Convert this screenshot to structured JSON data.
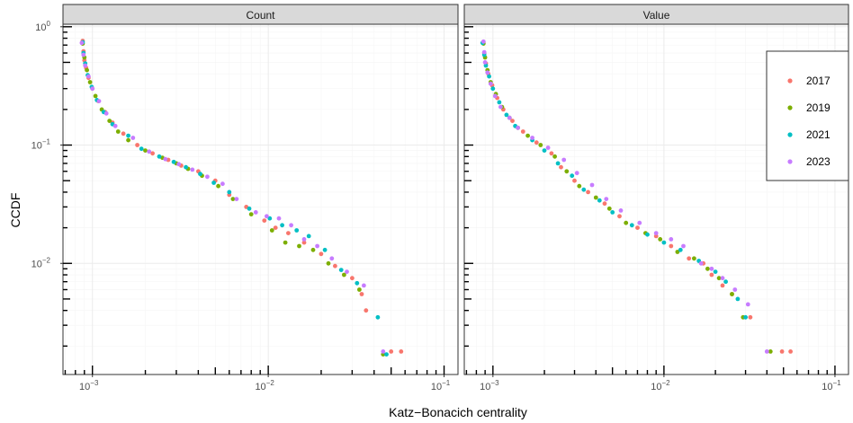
{
  "colors": {
    "2017": "#F8766D",
    "2019": "#7CAE00",
    "2021": "#00BFC4",
    "2023": "#C77CFF",
    "strip_bg": "#d9d9d9",
    "panel_border": "#333333",
    "grid_major": "#ebebeb",
    "grid_minor": "#f5f5f5"
  },
  "chart_data": {
    "type": "scatter",
    "x_scale": "log10",
    "y_scale": "log10",
    "xlabel": "Katz−Bonacich centrality",
    "ylabel": "CCDF",
    "xlim": [
      0.00068,
      0.12
    ],
    "ylim": [
      0.00115,
      1.05
    ],
    "grid": true,
    "legend_position": "top-right",
    "x_ticks": [
      {
        "value": 0.001,
        "base": "10",
        "exp": "−3"
      },
      {
        "value": 0.01,
        "base": "10",
        "exp": "−2"
      },
      {
        "value": 0.1,
        "base": "10",
        "exp": "−1"
      }
    ],
    "y_ticks": [
      {
        "value": 1,
        "base": "10",
        "exp": "0"
      },
      {
        "value": 0.1,
        "base": "10",
        "exp": "−1"
      },
      {
        "value": 0.01,
        "base": "10",
        "exp": "−2"
      }
    ],
    "legend": [
      "2017",
      "2019",
      "2021",
      "2023"
    ],
    "panels": [
      {
        "title": "Count",
        "series": [
          {
            "name": "2017",
            "points": [
              [
                0.00088,
                0.76
              ],
              [
                0.00089,
                0.62
              ],
              [
                0.0009,
                0.52
              ],
              [
                0.00092,
                0.45
              ],
              [
                0.00095,
                0.37
              ],
              [
                0.001,
                0.3
              ],
              [
                0.00108,
                0.235
              ],
              [
                0.00118,
                0.19
              ],
              [
                0.0013,
                0.155
              ],
              [
                0.0015,
                0.125
              ],
              [
                0.0018,
                0.1
              ],
              [
                0.0022,
                0.085
              ],
              [
                0.0027,
                0.075
              ],
              [
                0.0032,
                0.067
              ],
              [
                0.004,
                0.06
              ],
              [
                0.005,
                0.05
              ],
              [
                0.006,
                0.038
              ],
              [
                0.0075,
                0.03
              ],
              [
                0.0095,
                0.023
              ],
              [
                0.011,
                0.02
              ],
              [
                0.013,
                0.018
              ],
              [
                0.016,
                0.015
              ],
              [
                0.02,
                0.012
              ],
              [
                0.024,
                0.0095
              ],
              [
                0.03,
                0.0075
              ],
              [
                0.034,
                0.0055
              ],
              [
                0.036,
                0.004
              ],
              [
                0.05,
                0.0018
              ],
              [
                0.057,
                0.0018
              ]
            ]
          },
          {
            "name": "2019",
            "points": [
              [
                0.00088,
                0.72
              ],
              [
                0.0009,
                0.55
              ],
              [
                0.00093,
                0.43
              ],
              [
                0.00097,
                0.34
              ],
              [
                0.00104,
                0.26
              ],
              [
                0.00113,
                0.2
              ],
              [
                0.00125,
                0.16
              ],
              [
                0.0014,
                0.13
              ],
              [
                0.0016,
                0.11
              ],
              [
                0.002,
                0.09
              ],
              [
                0.0025,
                0.078
              ],
              [
                0.003,
                0.07
              ],
              [
                0.0035,
                0.063
              ],
              [
                0.0042,
                0.055
              ],
              [
                0.0052,
                0.045
              ],
              [
                0.0063,
                0.035
              ],
              [
                0.008,
                0.026
              ],
              [
                0.0105,
                0.019
              ],
              [
                0.0125,
                0.015
              ],
              [
                0.015,
                0.014
              ],
              [
                0.018,
                0.013
              ],
              [
                0.022,
                0.01
              ],
              [
                0.027,
                0.008
              ],
              [
                0.033,
                0.006
              ],
              [
                0.045,
                0.0017
              ]
            ]
          },
          {
            "name": "2021",
            "points": [
              [
                0.00088,
                0.74
              ],
              [
                0.00089,
                0.6
              ],
              [
                0.00091,
                0.49
              ],
              [
                0.00094,
                0.39
              ],
              [
                0.00099,
                0.31
              ],
              [
                0.00106,
                0.24
              ],
              [
                0.00116,
                0.19
              ],
              [
                0.0013,
                0.15
              ],
              [
                0.0016,
                0.12
              ],
              [
                0.0019,
                0.093
              ],
              [
                0.0024,
                0.08
              ],
              [
                0.0029,
                0.072
              ],
              [
                0.0034,
                0.065
              ],
              [
                0.0041,
                0.057
              ],
              [
                0.0049,
                0.048
              ],
              [
                0.006,
                0.04
              ],
              [
                0.0078,
                0.029
              ],
              [
                0.0102,
                0.024
              ],
              [
                0.012,
                0.021
              ],
              [
                0.0145,
                0.019
              ],
              [
                0.017,
                0.017
              ],
              [
                0.021,
                0.013
              ],
              [
                0.026,
                0.0088
              ],
              [
                0.032,
                0.0068
              ],
              [
                0.042,
                0.0035
              ],
              [
                0.047,
                0.0017
              ]
            ]
          },
          {
            "name": "2023",
            "points": [
              [
                0.00087,
                0.73
              ],
              [
                0.00089,
                0.58
              ],
              [
                0.00091,
                0.47
              ],
              [
                0.00095,
                0.38
              ],
              [
                0.001,
                0.3
              ],
              [
                0.00109,
                0.235
              ],
              [
                0.0012,
                0.185
              ],
              [
                0.00135,
                0.145
              ],
              [
                0.0017,
                0.115
              ],
              [
                0.0021,
                0.088
              ],
              [
                0.0026,
                0.076
              ],
              [
                0.0031,
                0.069
              ],
              [
                0.0037,
                0.062
              ],
              [
                0.0045,
                0.054
              ],
              [
                0.0055,
                0.047
              ],
              [
                0.0066,
                0.035
              ],
              [
                0.0085,
                0.027
              ],
              [
                0.0098,
                0.025
              ],
              [
                0.0115,
                0.024
              ],
              [
                0.0135,
                0.021
              ],
              [
                0.016,
                0.016
              ],
              [
                0.019,
                0.014
              ],
              [
                0.023,
                0.011
              ],
              [
                0.028,
                0.0085
              ],
              [
                0.035,
                0.0065
              ],
              [
                0.045,
                0.0018
              ]
            ]
          }
        ]
      },
      {
        "title": "Value",
        "series": [
          {
            "name": "2017",
            "points": [
              [
                0.00088,
                0.74
              ],
              [
                0.00089,
                0.6
              ],
              [
                0.00091,
                0.49
              ],
              [
                0.00094,
                0.4
              ],
              [
                0.00099,
                0.32
              ],
              [
                0.00106,
                0.25
              ],
              [
                0.00115,
                0.2
              ],
              [
                0.0013,
                0.16
              ],
              [
                0.0015,
                0.13
              ],
              [
                0.0018,
                0.105
              ],
              [
                0.0022,
                0.085
              ],
              [
                0.0025,
                0.065
              ],
              [
                0.003,
                0.05
              ],
              [
                0.0036,
                0.04
              ],
              [
                0.0045,
                0.032
              ],
              [
                0.0055,
                0.025
              ],
              [
                0.007,
                0.02
              ],
              [
                0.009,
                0.017
              ],
              [
                0.011,
                0.014
              ],
              [
                0.014,
                0.011
              ],
              [
                0.017,
                0.01
              ],
              [
                0.019,
                0.008
              ],
              [
                0.022,
                0.0065
              ],
              [
                0.025,
                0.0055
              ],
              [
                0.032,
                0.0035
              ],
              [
                0.049,
                0.0018
              ],
              [
                0.055,
                0.0018
              ]
            ]
          },
          {
            "name": "2019",
            "points": [
              [
                0.00088,
                0.72
              ],
              [
                0.0009,
                0.55
              ],
              [
                0.00093,
                0.43
              ],
              [
                0.00097,
                0.34
              ],
              [
                0.00104,
                0.27
              ],
              [
                0.00113,
                0.21
              ],
              [
                0.00125,
                0.17
              ],
              [
                0.0014,
                0.14
              ],
              [
                0.0016,
                0.12
              ],
              [
                0.0019,
                0.1
              ],
              [
                0.0023,
                0.08
              ],
              [
                0.0027,
                0.06
              ],
              [
                0.0032,
                0.045
              ],
              [
                0.004,
                0.036
              ],
              [
                0.0048,
                0.029
              ],
              [
                0.006,
                0.022
              ],
              [
                0.0078,
                0.018
              ],
              [
                0.0095,
                0.016
              ],
              [
                0.012,
                0.0125
              ],
              [
                0.015,
                0.011
              ],
              [
                0.018,
                0.009
              ],
              [
                0.021,
                0.0075
              ],
              [
                0.025,
                0.0055
              ],
              [
                0.029,
                0.0035
              ],
              [
                0.042,
                0.0018
              ]
            ]
          },
          {
            "name": "2021",
            "points": [
              [
                0.00087,
                0.73
              ],
              [
                0.00089,
                0.58
              ],
              [
                0.00091,
                0.47
              ],
              [
                0.00095,
                0.38
              ],
              [
                0.001,
                0.3
              ],
              [
                0.00109,
                0.23
              ],
              [
                0.0012,
                0.18
              ],
              [
                0.00135,
                0.145
              ],
              [
                0.0017,
                0.11
              ],
              [
                0.002,
                0.09
              ],
              [
                0.0024,
                0.07
              ],
              [
                0.0029,
                0.055
              ],
              [
                0.0034,
                0.042
              ],
              [
                0.0042,
                0.034
              ],
              [
                0.005,
                0.027
              ],
              [
                0.0065,
                0.021
              ],
              [
                0.008,
                0.0175
              ],
              [
                0.01,
                0.015
              ],
              [
                0.0125,
                0.013
              ],
              [
                0.016,
                0.0105
              ],
              [
                0.02,
                0.0085
              ],
              [
                0.023,
                0.007
              ],
              [
                0.027,
                0.005
              ],
              [
                0.03,
                0.0035
              ]
            ]
          },
          {
            "name": "2023",
            "points": [
              [
                0.00088,
                0.75
              ],
              [
                0.00089,
                0.61
              ],
              [
                0.0009,
                0.5
              ],
              [
                0.00093,
                0.41
              ],
              [
                0.00097,
                0.33
              ],
              [
                0.00103,
                0.26
              ],
              [
                0.00111,
                0.21
              ],
              [
                0.00125,
                0.17
              ],
              [
                0.0014,
                0.14
              ],
              [
                0.0017,
                0.115
              ],
              [
                0.0021,
                0.095
              ],
              [
                0.0026,
                0.075
              ],
              [
                0.0031,
                0.058
              ],
              [
                0.0038,
                0.046
              ],
              [
                0.0046,
                0.035
              ],
              [
                0.0056,
                0.028
              ],
              [
                0.0072,
                0.022
              ],
              [
                0.009,
                0.018
              ],
              [
                0.011,
                0.016
              ],
              [
                0.013,
                0.014
              ],
              [
                0.0165,
                0.01
              ],
              [
                0.019,
                0.009
              ],
              [
                0.022,
                0.0075
              ],
              [
                0.026,
                0.006
              ],
              [
                0.031,
                0.0045
              ],
              [
                0.04,
                0.0018
              ]
            ]
          }
        ]
      }
    ]
  }
}
